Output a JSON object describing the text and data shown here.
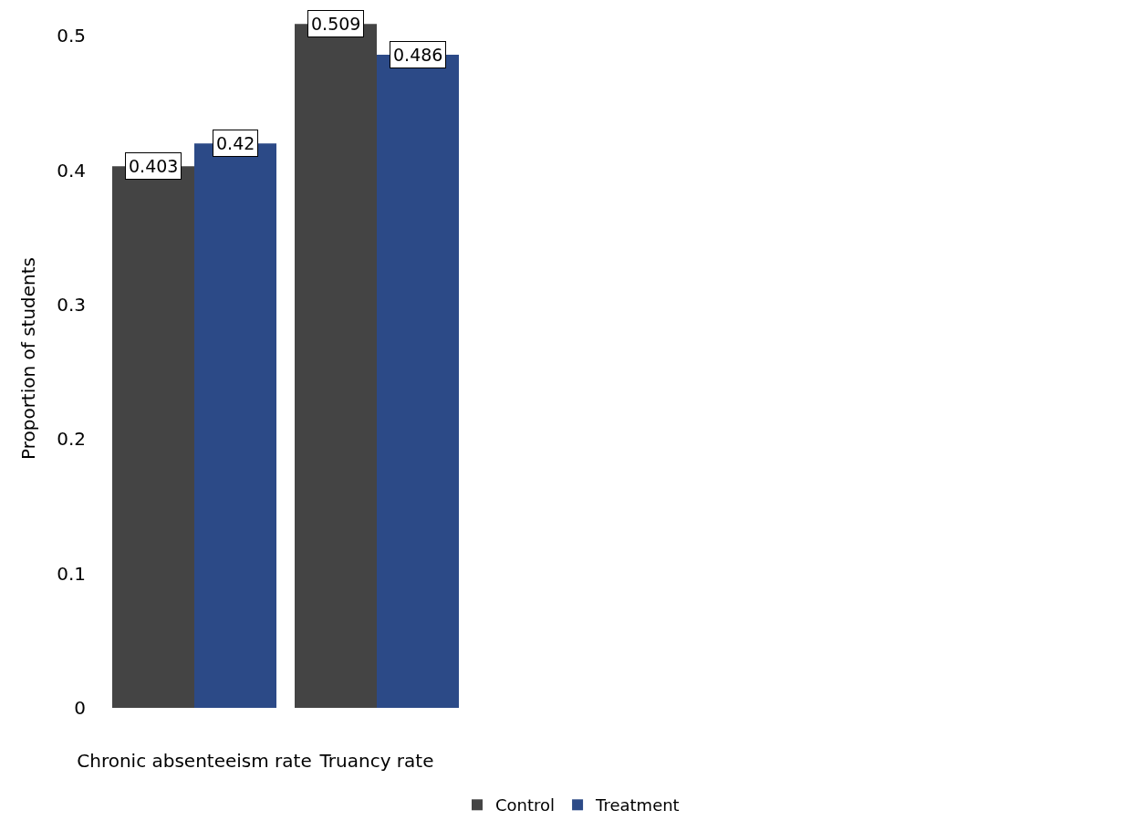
{
  "chart_data": {
    "type": "bar",
    "ylabel": "Proportion of students",
    "categories": [
      "Chronic absenteeism rate",
      "Truancy rate"
    ],
    "series": [
      {
        "name": "Control",
        "color": "#444444",
        "values": [
          0.403,
          0.509
        ]
      },
      {
        "name": "Treatment",
        "color": "#2c4a87",
        "values": [
          0.42,
          0.486
        ]
      }
    ],
    "ylim": [
      0,
      0.52
    ],
    "yticks": [
      0,
      0.1,
      0.2,
      0.3,
      0.4,
      0.5
    ],
    "grid": false,
    "legend": "bottom",
    "data_labels": true
  }
}
